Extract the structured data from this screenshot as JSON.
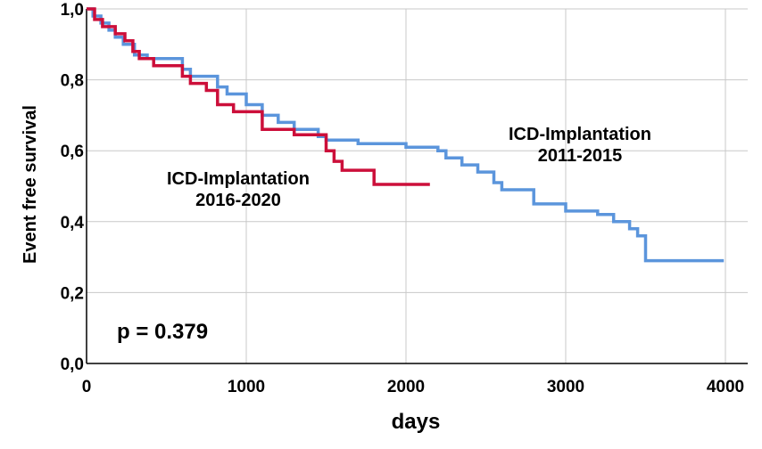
{
  "chart_data": {
    "type": "line",
    "title": "",
    "xlabel": "days",
    "ylabel": "Event free survival",
    "xlim": [
      0,
      4000
    ],
    "ylim": [
      0,
      1.0
    ],
    "x_ticks": [
      "0",
      "1000",
      "2000",
      "3000",
      "4000"
    ],
    "y_ticks": [
      "0,0",
      "0,2",
      "0,4",
      "0,6",
      "0,8",
      "1,0"
    ],
    "grid": true,
    "step": true,
    "series": [
      {
        "name": "ICD-Implantation 2011-2015",
        "color": "#5b95dc",
        "x": [
          0,
          40,
          90,
          140,
          180,
          230,
          300,
          380,
          600,
          650,
          820,
          880,
          1000,
          1100,
          1200,
          1300,
          1450,
          1500,
          1700,
          2000,
          2200,
          2250,
          2350,
          2450,
          2550,
          2600,
          2800,
          3000,
          3100,
          3200,
          3300,
          3400,
          3450,
          3500,
          3990
        ],
        "y": [
          1.0,
          0.98,
          0.96,
          0.94,
          0.92,
          0.9,
          0.87,
          0.86,
          0.83,
          0.81,
          0.78,
          0.76,
          0.73,
          0.7,
          0.68,
          0.66,
          0.64,
          0.63,
          0.62,
          0.61,
          0.6,
          0.58,
          0.56,
          0.54,
          0.51,
          0.49,
          0.45,
          0.43,
          0.43,
          0.42,
          0.4,
          0.38,
          0.36,
          0.29,
          0.29
        ]
      },
      {
        "name": "ICD-Implantation 2016-2020",
        "color": "#cc0f3a",
        "x": [
          0,
          50,
          100,
          180,
          240,
          290,
          330,
          420,
          600,
          650,
          750,
          820,
          920,
          1100,
          1300,
          1500,
          1550,
          1600,
          1800,
          2150
        ],
        "y": [
          1.0,
          0.97,
          0.95,
          0.93,
          0.91,
          0.88,
          0.86,
          0.84,
          0.81,
          0.79,
          0.77,
          0.73,
          0.71,
          0.66,
          0.645,
          0.6,
          0.57,
          0.545,
          0.505,
          0.505
        ]
      }
    ],
    "annotations": [
      {
        "lines": [
          "ICD-Implantation",
          "2011-2015"
        ]
      },
      {
        "lines": [
          "ICD-Implantation",
          "2016-2020"
        ]
      },
      {
        "text": "p = 0.379"
      }
    ]
  }
}
